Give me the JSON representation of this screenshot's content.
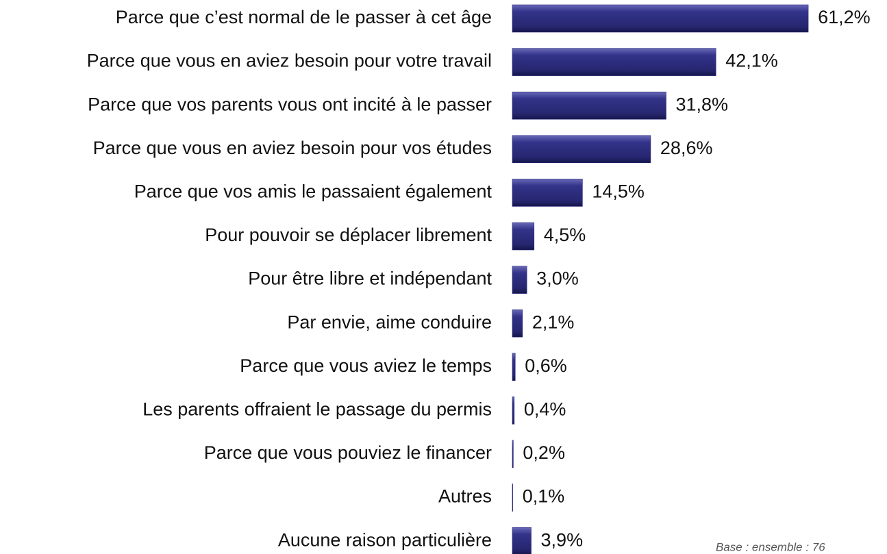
{
  "chart_data": {
    "type": "barh",
    "categories": [
      "Parce que c’est normal de le passer à cet âge",
      "Parce que vous en aviez besoin pour votre travail",
      "Parce que vos parents vous ont incité à le passer",
      "Parce que vous en aviez besoin pour vos études",
      "Parce que vos amis le passaient également",
      "Pour pouvoir se déplacer librement",
      "Pour être libre et indépendant",
      "Par envie, aime conduire",
      "Parce que vous aviez le temps",
      "Les parents offraient le passage du permis",
      "Parce que vous pouviez le financer",
      "Autres",
      "Aucune raison particulière"
    ],
    "values": [
      61.2,
      42.1,
      31.8,
      28.6,
      14.5,
      4.5,
      3.0,
      2.1,
      0.6,
      0.4,
      0.2,
      0.1,
      3.9
    ],
    "value_labels": [
      "61,2%",
      "42,1%",
      "31,8%",
      "28,6%",
      "14,5%",
      "4,5%",
      "3,0%",
      "2,1%",
      "0,6%",
      "0,4%",
      "0,2%",
      "0,1%",
      "3,9%"
    ],
    "color": "#2e2e80",
    "footnote": "Base : ensemble : 76"
  }
}
